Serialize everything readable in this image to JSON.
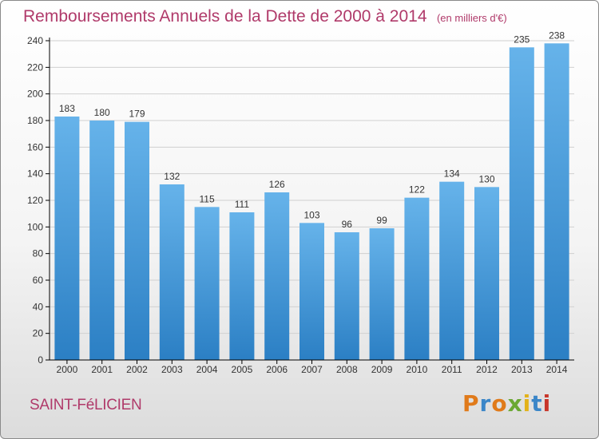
{
  "header": {
    "title": "Remboursements Annuels de la Dette de 2000 à 2014",
    "subtitle": "(en milliers d'€)"
  },
  "footer": {
    "town": "SAINT-FéLICIEN",
    "logo_text": "Proxiti",
    "logo_colors": [
      "#e07a1a",
      "#3b86c8",
      "#e07a1a",
      "#6aa832",
      "#e3b21a",
      "#3b86c8",
      "#c8362b"
    ]
  },
  "colors": {
    "bar_top": "#66b3ea",
    "bar_bottom": "#2b7fc4",
    "axis": "#000000",
    "grid": "#d0d0d0",
    "text": "#333333"
  },
  "chart_data": {
    "type": "bar",
    "title": "Remboursements Annuels de la Dette de 2000 à 2014",
    "subtitle": "(en milliers d'€)",
    "xlabel": "",
    "ylabel": "",
    "categories": [
      "2000",
      "2001",
      "2002",
      "2003",
      "2004",
      "2005",
      "2006",
      "2007",
      "2008",
      "2009",
      "2010",
      "2011",
      "2012",
      "2013",
      "2014"
    ],
    "values": [
      183,
      180,
      179,
      132,
      115,
      111,
      126,
      103,
      96,
      99,
      122,
      134,
      130,
      235,
      238
    ],
    "ylim": [
      0,
      240
    ],
    "yticks": [
      0,
      20,
      40,
      60,
      80,
      100,
      120,
      140,
      160,
      180,
      200,
      220,
      240
    ],
    "grid": true,
    "legend": "none"
  }
}
